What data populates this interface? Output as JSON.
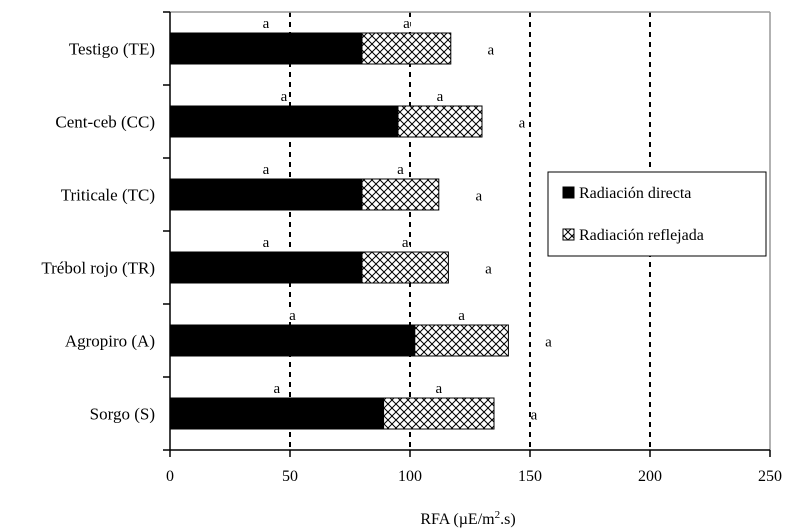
{
  "chart_data": {
    "type": "bar",
    "orientation": "horizontal",
    "stacked": true,
    "categories": [
      "Testigo (TE)",
      "Cent-ceb (CC)",
      "Triticale (TC)",
      "Trébol rojo (TR)",
      "Agropiro (A)",
      "Sorgo (S)"
    ],
    "series": [
      {
        "name": "Radiación directa",
        "values": [
          80,
          95,
          80,
          80,
          102,
          89
        ],
        "color": "#000000",
        "fill": "solid"
      },
      {
        "name": "Radiación reflejada",
        "values": [
          37,
          35,
          32,
          36,
          39,
          46
        ],
        "color": "#000000",
        "fill": "crosshatch"
      }
    ],
    "significance": {
      "directa": [
        "a",
        "a",
        "a",
        "a",
        "a",
        "a"
      ],
      "reflejada": [
        "a",
        "a",
        "a",
        "a",
        "a",
        "a"
      ],
      "total": [
        "a",
        "a",
        "a",
        "a",
        "a",
        "a"
      ]
    },
    "xlabel": "RFA (µE/m2.s)",
    "ylabel": "",
    "xlim": [
      0,
      250
    ],
    "xticks": [
      "0",
      "50",
      "100",
      "150",
      "200",
      "250"
    ],
    "grid": "vertical dashed",
    "legend_position": "right"
  }
}
